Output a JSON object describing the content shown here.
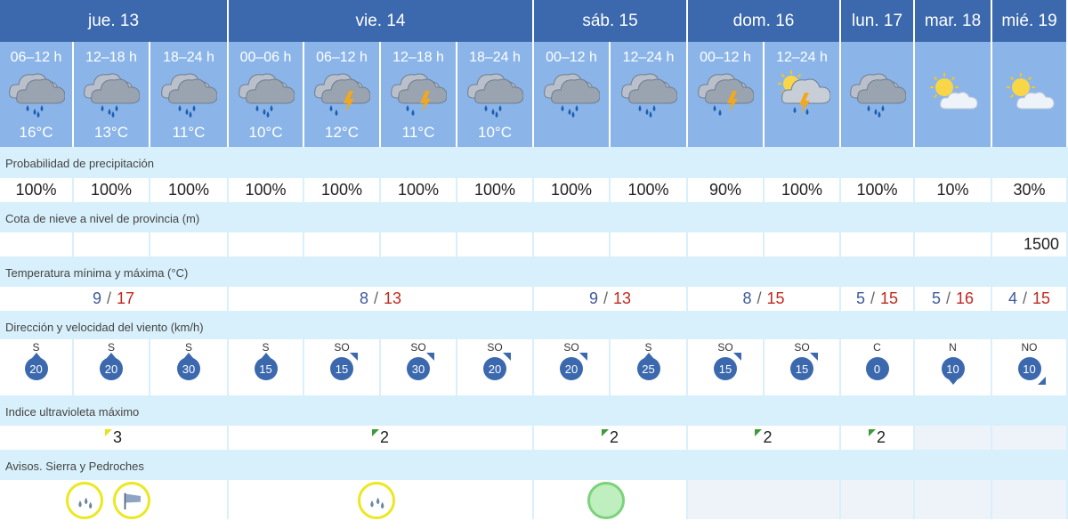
{
  "days": [
    "jue. 13",
    "vie. 14",
    "sáb. 15",
    "dom. 16",
    "lun. 17",
    "mar. 18",
    "mié. 19"
  ],
  "periods": [
    {
      "label": "06–12 h",
      "icon": "rain-cloud-icon",
      "temp": "16°C"
    },
    {
      "label": "12–18 h",
      "icon": "rain-cloud-icon",
      "temp": "13°C"
    },
    {
      "label": "18–24 h",
      "icon": "rain-cloud-icon",
      "temp": "11°C"
    },
    {
      "label": "00–06 h",
      "icon": "rain-cloud-icon",
      "temp": "10°C"
    },
    {
      "label": "06–12 h",
      "icon": "storm-cloud-icon",
      "temp": "12°C"
    },
    {
      "label": "12–18 h",
      "icon": "storm-cloud-icon",
      "temp": "11°C"
    },
    {
      "label": "18–24 h",
      "icon": "rain-cloud-icon",
      "temp": "10°C"
    },
    {
      "label": "00–12 h",
      "icon": "rain-cloud-icon",
      "temp": ""
    },
    {
      "label": "12–24 h",
      "icon": "rain-cloud-icon",
      "temp": ""
    },
    {
      "label": "00–12 h",
      "icon": "storm-cloud-icon",
      "temp": ""
    },
    {
      "label": "12–24 h",
      "icon": "sun-storm-cloud-icon",
      "temp": ""
    },
    {
      "label": "",
      "icon": "rain-cloud-icon",
      "temp": ""
    },
    {
      "label": "",
      "icon": "sun-cloud-icon",
      "temp": ""
    },
    {
      "label": "",
      "icon": "sun-cloud-icon",
      "temp": ""
    }
  ],
  "labels": {
    "precip": "Probabilidad de precipitación",
    "snow": "Cota de nieve a nivel de provincia (m)",
    "temp": "Temperatura mínima y máxima (°C)",
    "wind": "Dirección y velocidad del viento (km/h)",
    "uv": "Indice ultravioleta máximo",
    "avisos": "Avisos. Sierra y Pedroches"
  },
  "precip": [
    "100%",
    "100%",
    "100%",
    "100%",
    "100%",
    "100%",
    "100%",
    "100%",
    "100%",
    "90%",
    "100%",
    "100%",
    "10%",
    "30%"
  ],
  "snow": [
    "",
    "",
    "",
    "",
    "",
    "",
    "",
    "",
    "",
    "",
    "",
    "",
    "",
    "1500"
  ],
  "temps": [
    {
      "min": "9",
      "max": "17"
    },
    {
      "min": "8",
      "max": "13"
    },
    {
      "min": "9",
      "max": "13"
    },
    {
      "min": "8",
      "max": "15"
    },
    {
      "min": "5",
      "max": "15"
    },
    {
      "min": "5",
      "max": "16"
    },
    {
      "min": "4",
      "max": "15"
    }
  ],
  "temp_separator": "/",
  "wind": [
    {
      "dir": "S",
      "speed": "20"
    },
    {
      "dir": "S",
      "speed": "20"
    },
    {
      "dir": "S",
      "speed": "30"
    },
    {
      "dir": "S",
      "speed": "15"
    },
    {
      "dir": "SO",
      "speed": "15"
    },
    {
      "dir": "SO",
      "speed": "30"
    },
    {
      "dir": "SO",
      "speed": "20"
    },
    {
      "dir": "SO",
      "speed": "20"
    },
    {
      "dir": "S",
      "speed": "25"
    },
    {
      "dir": "SO",
      "speed": "15"
    },
    {
      "dir": "SO",
      "speed": "15"
    },
    {
      "dir": "C",
      "speed": "0"
    },
    {
      "dir": "N",
      "speed": "10"
    },
    {
      "dir": "NO",
      "speed": "10"
    }
  ],
  "uv": [
    {
      "value": "3",
      "level": "yellow"
    },
    {
      "value": "2",
      "level": "green"
    },
    {
      "value": "2",
      "level": "green"
    },
    {
      "value": "2",
      "level": "green"
    },
    {
      "value": "2",
      "level": "green"
    },
    {
      "value": "",
      "level": ""
    },
    {
      "value": "",
      "level": ""
    }
  ],
  "avisos": [
    {
      "icons": [
        "rain-warning-icon",
        "wind-warning-icon"
      ],
      "color": "yellow"
    },
    {
      "icons": [
        "rain-warning-icon"
      ],
      "color": "yellow"
    },
    {
      "icons": [
        "no-warning-icon"
      ],
      "color": "green"
    },
    {
      "icons": [],
      "color": ""
    },
    {
      "icons": [],
      "color": ""
    },
    {
      "icons": [],
      "color": ""
    },
    {
      "icons": [],
      "color": ""
    }
  ],
  "colors": {
    "header": "#3c69ae",
    "icon_bg": "#8bb5e8",
    "label_bg": "#d8f0fb",
    "min_temp": "#3d5a99",
    "max_temp": "#c0281f",
    "warning_yellow": "#ece820",
    "warning_green": "#7cd27c"
  }
}
